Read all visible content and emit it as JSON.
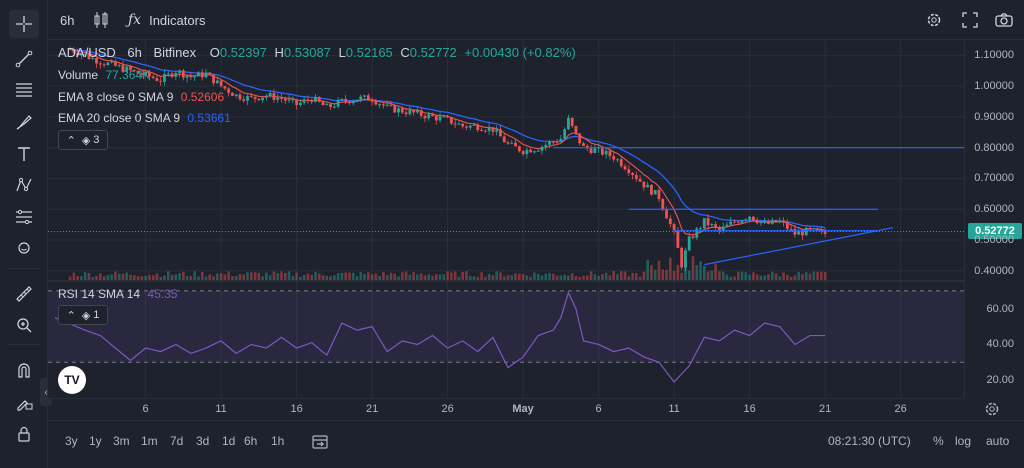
{
  "colors": {
    "up": "#26a69a",
    "down": "#ef5350",
    "ema8": "#ef5350",
    "ema20": "#2962ff",
    "rsi": "#7e57c2",
    "price_tag": "#26a69a",
    "text": "#d1d4dc",
    "muted": "#b2b5be"
  },
  "topbar": {
    "interval": "6h",
    "chart_type_icon": "candles-icon",
    "indicators_label": "Indicators",
    "settings_icon": "gear-icon",
    "fullscreen_icon": "fullscreen-icon",
    "snapshot_icon": "camera-icon"
  },
  "left_toolbar": [
    "crosshair-icon",
    "trend-line-icon",
    "horizontal-lines-icon",
    "brush-icon",
    "text-icon",
    "pattern-icon",
    "measure-lines-icon",
    "emoji-icon",
    "ruler-icon",
    "zoom-icon",
    "magnet-icon",
    "lock-draw-icon",
    "lock-icon"
  ],
  "legend": {
    "symbol": "ADA/USD",
    "interval": "6h",
    "exchange": "Bitfinex",
    "o_label": "O",
    "o": "0.52397",
    "h_label": "H",
    "h": "0.53087",
    "l_label": "L",
    "l": "0.52165",
    "c_label": "C",
    "c": "0.52772",
    "change": "+0.00430 (+0.82%)",
    "volume_label": "Volume",
    "volume": "77.364K",
    "ema8_label": "EMA 8 close 0 SMA 9",
    "ema8": "0.52606",
    "ema20_label": "EMA 20 close 0 SMA 9",
    "ema20": "0.53661",
    "layers_count": "3"
  },
  "rsi_legend": {
    "label": "RSI 14 SMA 14",
    "value": "45.35",
    "layers_count": "1"
  },
  "price_axis": [
    "1.10000",
    "1.00000",
    "0.90000",
    "0.80000",
    "0.70000",
    "0.60000",
    "0.50000",
    "0.40000"
  ],
  "price_axis_values": [
    1.1,
    1.0,
    0.9,
    0.8,
    0.7,
    0.6,
    0.5,
    0.4
  ],
  "last_price": "0.52772",
  "last_price_value": 0.52772,
  "rsi_axis": [
    "60.00",
    "40.00",
    "20.00"
  ],
  "rsi_axis_values": [
    60,
    40,
    20
  ],
  "time_axis": [
    {
      "label": "6",
      "day": 6
    },
    {
      "label": "11",
      "day": 11
    },
    {
      "label": "16",
      "day": 16
    },
    {
      "label": "21",
      "day": 21
    },
    {
      "label": "26",
      "day": 26
    },
    {
      "label": "May",
      "day": 31
    },
    {
      "label": "6",
      "day": 36
    },
    {
      "label": "11",
      "day": 41
    },
    {
      "label": "16",
      "day": 46
    },
    {
      "label": "21",
      "day": 51
    },
    {
      "label": "26",
      "day": 56
    }
  ],
  "bottombar": {
    "ranges": [
      "3y",
      "1y",
      "3m",
      "1m",
      "7d",
      "3d",
      "1d",
      "6h",
      "1h"
    ],
    "goto_icon": "calendar-goto-icon",
    "clock": "08:21:30 (UTC)",
    "percent": "%",
    "log": "log",
    "auto": "auto"
  },
  "chart_data": {
    "type": "candlestick",
    "symbol": "ADA/USD",
    "ylim": [
      0.37,
      1.15
    ],
    "close_path": [
      [
        1,
        1.12
      ],
      [
        3,
        1.08
      ],
      [
        5,
        1.05
      ],
      [
        7,
        1.02
      ],
      [
        8,
        1.05
      ],
      [
        9,
        1.03
      ],
      [
        10,
        1.04
      ],
      [
        11,
        1.0
      ],
      [
        12,
        0.97
      ],
      [
        13,
        0.96
      ],
      [
        14,
        0.97
      ],
      [
        15,
        0.96
      ],
      [
        16,
        0.94
      ],
      [
        17,
        0.96
      ],
      [
        18,
        0.93
      ],
      [
        19,
        0.95
      ],
      [
        20,
        0.96
      ],
      [
        21,
        0.96
      ],
      [
        22,
        0.93
      ],
      [
        23,
        0.92
      ],
      [
        24,
        0.91
      ],
      [
        25,
        0.9
      ],
      [
        26,
        0.89
      ],
      [
        27,
        0.87
      ],
      [
        28,
        0.87
      ],
      [
        29,
        0.86
      ],
      [
        30,
        0.81
      ],
      [
        31,
        0.79
      ],
      [
        32,
        0.8
      ],
      [
        33,
        0.82
      ],
      [
        33.5,
        0.83
      ],
      [
        34,
        0.89
      ],
      [
        34.5,
        0.84
      ],
      [
        35,
        0.8
      ],
      [
        36,
        0.79
      ],
      [
        37,
        0.77
      ],
      [
        38,
        0.73
      ],
      [
        39,
        0.68
      ],
      [
        40,
        0.64
      ],
      [
        41,
        0.52
      ],
      [
        41.5,
        0.42
      ],
      [
        42,
        0.5
      ],
      [
        43,
        0.56
      ],
      [
        44,
        0.53
      ],
      [
        45,
        0.56
      ],
      [
        46,
        0.58
      ],
      [
        47,
        0.55
      ],
      [
        48,
        0.56
      ],
      [
        49,
        0.52
      ],
      [
        50,
        0.53
      ],
      [
        51,
        0.52
      ]
    ],
    "trendlines": [
      {
        "from": [
          33,
          0.8
        ],
        "to": [
          61,
          0.8
        ]
      },
      {
        "from": [
          38,
          0.6
        ],
        "to": [
          54.5,
          0.6
        ]
      },
      {
        "from": [
          41,
          0.53
        ],
        "to": [
          54.5,
          0.53
        ]
      },
      {
        "from": [
          43,
          0.42
        ],
        "to": [
          55.5,
          0.54
        ]
      }
    ],
    "rsi": {
      "ylim": [
        10,
        75
      ],
      "upper": 70,
      "lower": 30,
      "values": [
        [
          0,
          55
        ],
        [
          2,
          48
        ],
        [
          3,
          45
        ],
        [
          4,
          38
        ],
        [
          5,
          31
        ],
        [
          6,
          38
        ],
        [
          7,
          36
        ],
        [
          8,
          40
        ],
        [
          9,
          35
        ],
        [
          10,
          38
        ],
        [
          11,
          42
        ],
        [
          12,
          35
        ],
        [
          13,
          40
        ],
        [
          14,
          38
        ],
        [
          15,
          44
        ],
        [
          16,
          38
        ],
        [
          17,
          41
        ],
        [
          18,
          34
        ],
        [
          19,
          52
        ],
        [
          20,
          48
        ],
        [
          21,
          50
        ],
        [
          22,
          36
        ],
        [
          23,
          42
        ],
        [
          24,
          40
        ],
        [
          25,
          45
        ],
        [
          26,
          38
        ],
        [
          27,
          42
        ],
        [
          28,
          36
        ],
        [
          29,
          44
        ],
        [
          30,
          27
        ],
        [
          31,
          33
        ],
        [
          32,
          45
        ],
        [
          33,
          48
        ],
        [
          33.5,
          55
        ],
        [
          34,
          69
        ],
        [
          34.5,
          60
        ],
        [
          35,
          42
        ],
        [
          36,
          40
        ],
        [
          37,
          36
        ],
        [
          38,
          38
        ],
        [
          39,
          33
        ],
        [
          40,
          30
        ],
        [
          41,
          19
        ],
        [
          42,
          28
        ],
        [
          43,
          44
        ],
        [
          44,
          42
        ],
        [
          45,
          48
        ],
        [
          46,
          45
        ],
        [
          47,
          52
        ],
        [
          48,
          50
        ],
        [
          49,
          40
        ],
        [
          50,
          45
        ],
        [
          51,
          45
        ]
      ]
    }
  }
}
